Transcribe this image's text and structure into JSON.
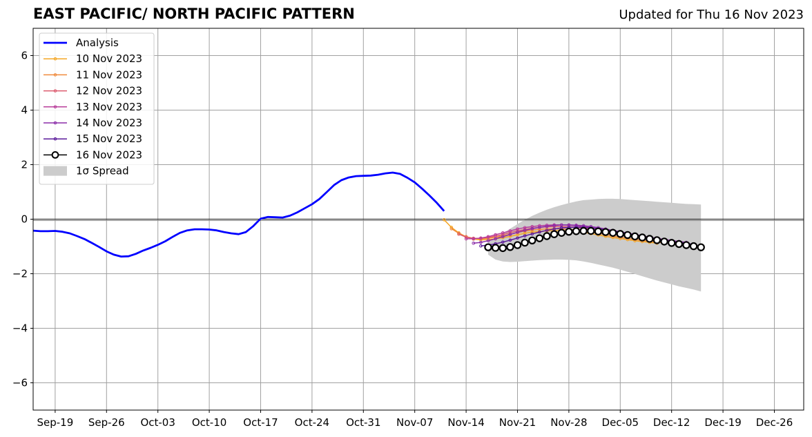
{
  "chart_data": {
    "type": "line",
    "title": "EAST PACIFIC/ NORTH PACIFIC PATTERN",
    "subtitle": "Updated for Thu 16 Nov 2023",
    "xlabel": "",
    "ylabel": "",
    "ylim": [
      -7,
      7
    ],
    "yticks": [
      -6,
      -4,
      -2,
      0,
      2,
      4,
      6
    ],
    "ytick_labels": [
      "−6",
      "−4",
      "−2",
      "0",
      "2",
      "4",
      "6"
    ],
    "xlim": [
      "2023-09-16",
      "2023-12-30"
    ],
    "xticks": [
      "2023-09-19",
      "2023-09-26",
      "2023-10-03",
      "2023-10-10",
      "2023-10-17",
      "2023-10-24",
      "2023-10-31",
      "2023-11-07",
      "2023-11-14",
      "2023-11-21",
      "2023-11-28",
      "2023-12-05",
      "2023-12-12",
      "2023-12-19",
      "2023-12-26"
    ],
    "xtick_labels": [
      "Sep-19",
      "Sep-26",
      "Oct-03",
      "Oct-10",
      "Oct-17",
      "Oct-24",
      "Oct-31",
      "Nov-07",
      "Nov-14",
      "Nov-21",
      "Nov-28",
      "Dec-05",
      "Dec-12",
      "Dec-19",
      "Dec-26"
    ],
    "grid": true,
    "legend_position": "top-left",
    "legend": [
      "Analysis",
      "10 Nov 2023",
      "11 Nov 2023",
      "12 Nov 2023",
      "13 Nov 2023",
      "14 Nov 2023",
      "15 Nov 2023",
      "16 Nov 2023",
      "1σ Spread"
    ],
    "series": [
      {
        "name": "Analysis",
        "color": "#0000ff",
        "x": [
          "2023-09-16",
          "2023-09-17",
          "2023-09-18",
          "2023-09-19",
          "2023-09-20",
          "2023-09-21",
          "2023-09-22",
          "2023-09-23",
          "2023-09-24",
          "2023-09-25",
          "2023-09-26",
          "2023-09-27",
          "2023-09-28",
          "2023-09-29",
          "2023-09-30",
          "2023-10-01",
          "2023-10-02",
          "2023-10-03",
          "2023-10-04",
          "2023-10-05",
          "2023-10-06",
          "2023-10-07",
          "2023-10-08",
          "2023-10-09",
          "2023-10-10",
          "2023-10-11",
          "2023-10-12",
          "2023-10-13",
          "2023-10-14",
          "2023-10-15",
          "2023-10-16",
          "2023-10-17",
          "2023-10-18",
          "2023-10-19",
          "2023-10-20",
          "2023-10-21",
          "2023-10-22",
          "2023-10-23",
          "2023-10-24",
          "2023-10-25",
          "2023-10-26",
          "2023-10-27",
          "2023-10-28",
          "2023-10-29",
          "2023-10-30",
          "2023-10-31",
          "2023-11-01",
          "2023-11-02",
          "2023-11-03",
          "2023-11-04",
          "2023-11-05",
          "2023-11-06",
          "2023-11-07",
          "2023-11-08",
          "2023-11-09",
          "2023-11-10",
          "2023-11-11"
        ],
        "y": [
          -0.42,
          -0.44,
          -0.44,
          -0.43,
          -0.46,
          -0.52,
          -0.62,
          -0.73,
          -0.87,
          -1.02,
          -1.18,
          -1.3,
          -1.37,
          -1.36,
          -1.27,
          -1.15,
          -1.05,
          -0.94,
          -0.81,
          -0.65,
          -0.5,
          -0.41,
          -0.37,
          -0.37,
          -0.38,
          -0.41,
          -0.47,
          -0.52,
          -0.55,
          -0.47,
          -0.25,
          0.02,
          0.08,
          0.07,
          0.06,
          0.13,
          0.25,
          0.4,
          0.55,
          0.74,
          0.99,
          1.25,
          1.43,
          1.53,
          1.58,
          1.59,
          1.6,
          1.63,
          1.68,
          1.71,
          1.66,
          1.52,
          1.35,
          1.12,
          0.87,
          0.6,
          0.3
        ]
      },
      {
        "name": "10 Nov 2023",
        "color": "#f5a623",
        "x": [
          "2023-11-11",
          "2023-11-12",
          "2023-11-13",
          "2023-11-14",
          "2023-11-15",
          "2023-11-16",
          "2023-11-17",
          "2023-11-18",
          "2023-11-19",
          "2023-11-20",
          "2023-11-21",
          "2023-11-22",
          "2023-11-23",
          "2023-11-24",
          "2023-11-25",
          "2023-11-26",
          "2023-11-27",
          "2023-11-28",
          "2023-11-29",
          "2023-11-30",
          "2023-12-01",
          "2023-12-02",
          "2023-12-03",
          "2023-12-04",
          "2023-12-05",
          "2023-12-06",
          "2023-12-07",
          "2023-12-08",
          "2023-12-09",
          "2023-12-10"
        ],
        "y": [
          -0.02,
          -0.3,
          -0.5,
          -0.65,
          -0.73,
          -0.76,
          -0.75,
          -0.72,
          -0.68,
          -0.63,
          -0.57,
          -0.52,
          -0.47,
          -0.45,
          -0.43,
          -0.42,
          -0.42,
          -0.43,
          -0.45,
          -0.48,
          -0.53,
          -0.58,
          -0.63,
          -0.67,
          -0.71,
          -0.75,
          -0.79,
          -0.82,
          -0.85,
          -0.88
        ]
      },
      {
        "name": "11 Nov 2023",
        "color": "#f08a3c",
        "x": [
          "2023-11-12",
          "2023-11-13",
          "2023-11-14",
          "2023-11-15",
          "2023-11-16",
          "2023-11-17",
          "2023-11-18",
          "2023-11-19",
          "2023-11-20",
          "2023-11-21",
          "2023-11-22",
          "2023-11-23",
          "2023-11-24",
          "2023-11-25",
          "2023-11-26",
          "2023-11-27",
          "2023-11-28",
          "2023-11-29",
          "2023-11-30",
          "2023-12-01",
          "2023-12-02",
          "2023-12-03",
          "2023-12-04",
          "2023-12-05",
          "2023-12-06",
          "2023-12-07",
          "2023-12-08",
          "2023-12-09",
          "2023-12-10",
          "2023-12-11"
        ],
        "y": [
          -0.35,
          -0.52,
          -0.64,
          -0.7,
          -0.72,
          -0.7,
          -0.66,
          -0.61,
          -0.55,
          -0.49,
          -0.44,
          -0.4,
          -0.37,
          -0.36,
          -0.35,
          -0.36,
          -0.37,
          -0.4,
          -0.43,
          -0.47,
          -0.52,
          -0.57,
          -0.62,
          -0.66,
          -0.7,
          -0.74,
          -0.78,
          -0.81,
          -0.84,
          -0.87
        ]
      },
      {
        "name": "12 Nov 2023",
        "color": "#dc5a6e",
        "x": [
          "2023-11-13",
          "2023-11-14",
          "2023-11-15",
          "2023-11-16",
          "2023-11-17",
          "2023-11-18",
          "2023-11-19",
          "2023-11-20",
          "2023-11-21",
          "2023-11-22",
          "2023-11-23",
          "2023-11-24",
          "2023-11-25",
          "2023-11-26",
          "2023-11-27",
          "2023-11-28",
          "2023-11-29",
          "2023-11-30",
          "2023-12-01",
          "2023-12-02",
          "2023-12-03",
          "2023-12-04",
          "2023-12-05",
          "2023-12-06",
          "2023-12-07",
          "2023-12-08",
          "2023-12-09",
          "2023-12-10",
          "2023-12-11",
          "2023-12-12"
        ],
        "y": [
          -0.55,
          -0.66,
          -0.7,
          -0.7,
          -0.67,
          -0.62,
          -0.56,
          -0.49,
          -0.43,
          -0.38,
          -0.33,
          -0.3,
          -0.28,
          -0.27,
          -0.27,
          -0.28,
          -0.3,
          -0.33,
          -0.37,
          -0.42,
          -0.47,
          -0.52,
          -0.57,
          -0.62,
          -0.66,
          -0.7,
          -0.74,
          -0.78,
          -0.81,
          -0.84
        ]
      },
      {
        "name": "13 Nov 2023",
        "color": "#b83c9a",
        "x": [
          "2023-11-14",
          "2023-11-15",
          "2023-11-16",
          "2023-11-17",
          "2023-11-18",
          "2023-11-19",
          "2023-11-20",
          "2023-11-21",
          "2023-11-22",
          "2023-11-23",
          "2023-11-24",
          "2023-11-25",
          "2023-11-26",
          "2023-11-27",
          "2023-11-28",
          "2023-11-29",
          "2023-11-30",
          "2023-12-01",
          "2023-12-02",
          "2023-12-03",
          "2023-12-04",
          "2023-12-05",
          "2023-12-06",
          "2023-12-07",
          "2023-12-08",
          "2023-12-09",
          "2023-12-10",
          "2023-12-11",
          "2023-12-12",
          "2023-12-13"
        ],
        "y": [
          -0.72,
          -0.72,
          -0.69,
          -0.64,
          -0.57,
          -0.5,
          -0.43,
          -0.36,
          -0.31,
          -0.27,
          -0.24,
          -0.22,
          -0.21,
          -0.21,
          -0.22,
          -0.24,
          -0.27,
          -0.31,
          -0.35,
          -0.4,
          -0.45,
          -0.5,
          -0.55,
          -0.6,
          -0.65,
          -0.69,
          -0.73,
          -0.77,
          -0.8,
          -0.83
        ]
      },
      {
        "name": "14 Nov 2023",
        "color": "#8a2ca8",
        "x": [
          "2023-11-15",
          "2023-11-16",
          "2023-11-17",
          "2023-11-18",
          "2023-11-19",
          "2023-11-20",
          "2023-11-21",
          "2023-11-22",
          "2023-11-23",
          "2023-11-24",
          "2023-11-25",
          "2023-11-26",
          "2023-11-27",
          "2023-11-28",
          "2023-11-29",
          "2023-11-30",
          "2023-12-01",
          "2023-12-02",
          "2023-12-03",
          "2023-12-04",
          "2023-12-05",
          "2023-12-06",
          "2023-12-07",
          "2023-12-08",
          "2023-12-09",
          "2023-12-10",
          "2023-12-11",
          "2023-12-12",
          "2023-12-13",
          "2023-12-14"
        ],
        "y": [
          -0.88,
          -0.85,
          -0.79,
          -0.72,
          -0.64,
          -0.56,
          -0.48,
          -0.41,
          -0.35,
          -0.3,
          -0.26,
          -0.23,
          -0.21,
          -0.21,
          -0.22,
          -0.24,
          -0.27,
          -0.31,
          -0.36,
          -0.41,
          -0.46,
          -0.51,
          -0.56,
          -0.61,
          -0.66,
          -0.7,
          -0.74,
          -0.78,
          -0.82,
          -0.85
        ]
      },
      {
        "name": "15 Nov 2023",
        "color": "#5a1a9a",
        "x": [
          "2023-11-16",
          "2023-11-17",
          "2023-11-18",
          "2023-11-19",
          "2023-11-20",
          "2023-11-21",
          "2023-11-22",
          "2023-11-23",
          "2023-11-24",
          "2023-11-25",
          "2023-11-26",
          "2023-11-27",
          "2023-11-28",
          "2023-11-29",
          "2023-11-30",
          "2023-12-01",
          "2023-12-02",
          "2023-12-03",
          "2023-12-04",
          "2023-12-05",
          "2023-12-06",
          "2023-12-07",
          "2023-12-08",
          "2023-12-09",
          "2023-12-10",
          "2023-12-11",
          "2023-12-12",
          "2023-12-13",
          "2023-12-14",
          "2023-12-15"
        ],
        "y": [
          -0.98,
          -0.95,
          -0.9,
          -0.84,
          -0.77,
          -0.69,
          -0.61,
          -0.54,
          -0.47,
          -0.41,
          -0.36,
          -0.32,
          -0.3,
          -0.29,
          -0.3,
          -0.32,
          -0.35,
          -0.39,
          -0.44,
          -0.49,
          -0.54,
          -0.59,
          -0.64,
          -0.69,
          -0.74,
          -0.78,
          -0.82,
          -0.86,
          -0.89,
          -0.92
        ]
      },
      {
        "name": "16 Nov 2023",
        "color": "#000000",
        "x": [
          "2023-11-17",
          "2023-11-18",
          "2023-11-19",
          "2023-11-20",
          "2023-11-21",
          "2023-11-22",
          "2023-11-23",
          "2023-11-24",
          "2023-11-25",
          "2023-11-26",
          "2023-11-27",
          "2023-11-28",
          "2023-11-29",
          "2023-11-30",
          "2023-12-01",
          "2023-12-02",
          "2023-12-03",
          "2023-12-04",
          "2023-12-05",
          "2023-12-06",
          "2023-12-07",
          "2023-12-08",
          "2023-12-09",
          "2023-12-10",
          "2023-12-11",
          "2023-12-12",
          "2023-12-13",
          "2023-12-14",
          "2023-12-15",
          "2023-12-16"
        ],
        "y": [
          -1.03,
          -1.05,
          -1.06,
          -1.02,
          -0.95,
          -0.86,
          -0.78,
          -0.7,
          -0.62,
          -0.55,
          -0.5,
          -0.46,
          -0.44,
          -0.43,
          -0.43,
          -0.45,
          -0.47,
          -0.5,
          -0.54,
          -0.58,
          -0.63,
          -0.67,
          -0.72,
          -0.77,
          -0.82,
          -0.87,
          -0.91,
          -0.95,
          -0.99,
          -1.03
        ]
      }
    ],
    "spread": {
      "name": "1σ Spread",
      "color": "#cccccc",
      "x": [
        "2023-11-17",
        "2023-11-18",
        "2023-11-19",
        "2023-11-20",
        "2023-11-21",
        "2023-11-22",
        "2023-11-23",
        "2023-11-24",
        "2023-11-25",
        "2023-11-26",
        "2023-11-27",
        "2023-11-28",
        "2023-11-29",
        "2023-11-30",
        "2023-12-01",
        "2023-12-02",
        "2023-12-03",
        "2023-12-04",
        "2023-12-05",
        "2023-12-06",
        "2023-12-07",
        "2023-12-08",
        "2023-12-09",
        "2023-12-10",
        "2023-12-11",
        "2023-12-12",
        "2023-12-13",
        "2023-12-14",
        "2023-12-15",
        "2023-12-16"
      ],
      "lower": [
        -1.3,
        -1.48,
        -1.55,
        -1.57,
        -1.56,
        -1.54,
        -1.52,
        -1.5,
        -1.49,
        -1.48,
        -1.48,
        -1.49,
        -1.51,
        -1.55,
        -1.6,
        -1.66,
        -1.72,
        -1.78,
        -1.85,
        -1.93,
        -2.01,
        -2.09,
        -2.17,
        -2.25,
        -2.32,
        -2.39,
        -2.46,
        -2.52,
        -2.58,
        -2.65
      ],
      "upper": [
        -0.8,
        -0.68,
        -0.52,
        -0.35,
        -0.18,
        -0.02,
        0.12,
        0.24,
        0.35,
        0.44,
        0.52,
        0.59,
        0.65,
        0.7,
        0.72,
        0.74,
        0.75,
        0.75,
        0.74,
        0.72,
        0.7,
        0.68,
        0.66,
        0.64,
        0.62,
        0.6,
        0.58,
        0.56,
        0.55,
        0.54
      ]
    }
  }
}
